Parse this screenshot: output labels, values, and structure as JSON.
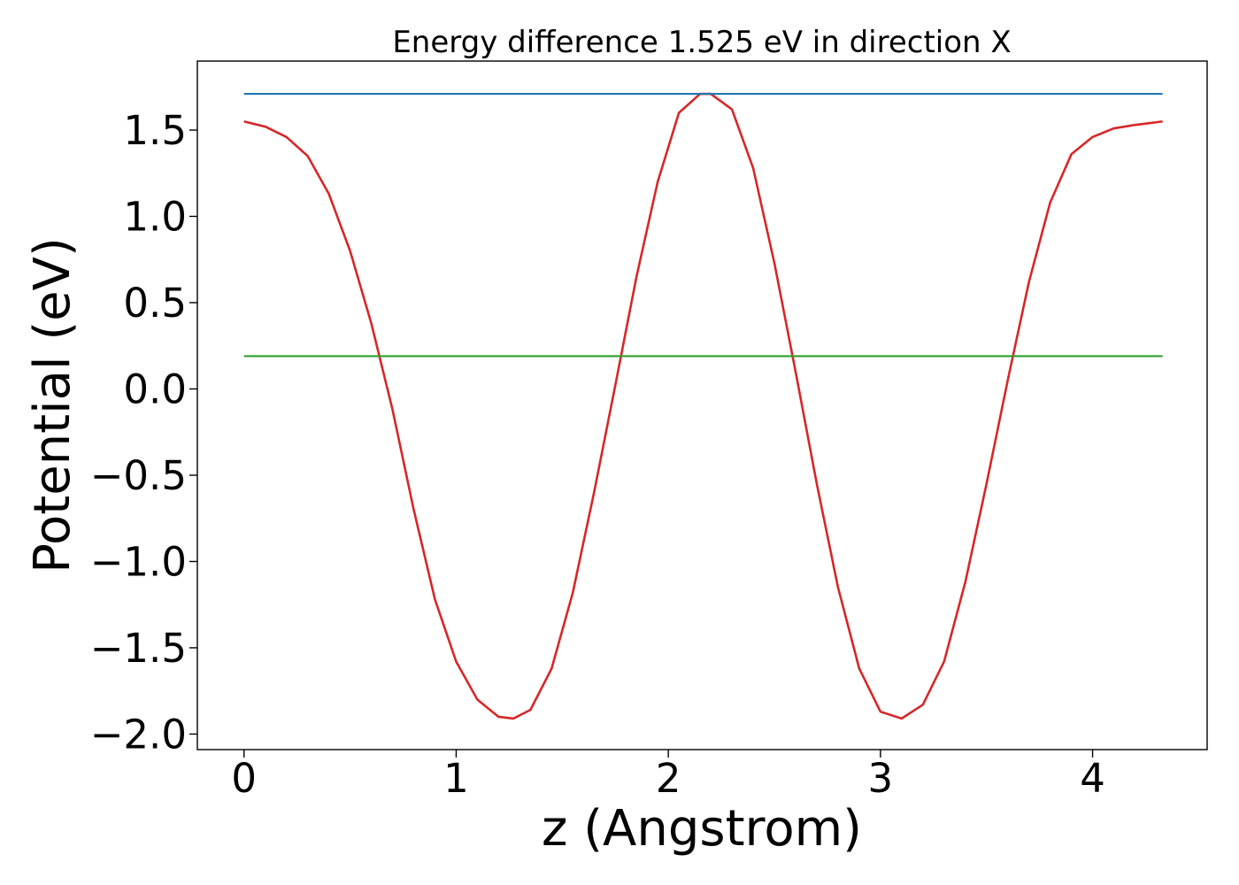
{
  "chart_data": {
    "type": "line",
    "title": "Energy difference 1.525 eV in direction X",
    "xlabel": "z (Angstrom)",
    "ylabel": "Potential (eV)",
    "xlim": [
      -0.22,
      4.54
    ],
    "ylim": [
      -2.09,
      1.9
    ],
    "xticks": [
      0,
      1,
      2,
      3,
      4
    ],
    "xtick_labels": [
      "0",
      "1",
      "2",
      "3",
      "4"
    ],
    "yticks": [
      1.5,
      1.0,
      0.5,
      0.0,
      -0.5,
      -1.0,
      -1.5,
      -2.0
    ],
    "ytick_labels": [
      "1.5",
      "1.0",
      "0.5",
      "0.0",
      "−0.5",
      "−1.0",
      "−1.5",
      "−2.0"
    ],
    "grid": false,
    "legend": "none",
    "series": [
      {
        "color": "#d62728",
        "x": [
          0.0,
          0.1,
          0.2,
          0.3,
          0.4,
          0.5,
          0.6,
          0.7,
          0.8,
          0.9,
          1.0,
          1.1,
          1.2,
          1.27,
          1.35,
          1.45,
          1.55,
          1.65,
          1.75,
          1.85,
          1.95,
          2.05,
          2.15,
          2.2,
          2.3,
          2.4,
          2.5,
          2.6,
          2.7,
          2.8,
          2.9,
          3.0,
          3.1,
          3.2,
          3.3,
          3.4,
          3.5,
          3.6,
          3.7,
          3.8,
          3.9,
          4.0,
          4.1,
          4.2,
          4.33
        ],
        "y": [
          1.55,
          1.52,
          1.46,
          1.35,
          1.13,
          0.8,
          0.38,
          -0.12,
          -0.7,
          -1.22,
          -1.58,
          -1.8,
          -1.9,
          -1.91,
          -1.86,
          -1.62,
          -1.18,
          -0.6,
          0.02,
          0.65,
          1.2,
          1.6,
          1.71,
          1.71,
          1.62,
          1.28,
          0.73,
          0.1,
          -0.55,
          -1.15,
          -1.62,
          -1.87,
          -1.91,
          -1.83,
          -1.58,
          -1.12,
          -0.55,
          0.05,
          0.62,
          1.08,
          1.36,
          1.46,
          1.51,
          1.53,
          1.55
        ]
      },
      {
        "color": "#1f77b4",
        "x": [
          0.0,
          4.33
        ],
        "y": [
          1.71,
          1.71
        ]
      },
      {
        "color": "#2ca02c",
        "x": [
          0.0,
          4.33
        ],
        "y": [
          0.19,
          0.19
        ]
      }
    ]
  }
}
